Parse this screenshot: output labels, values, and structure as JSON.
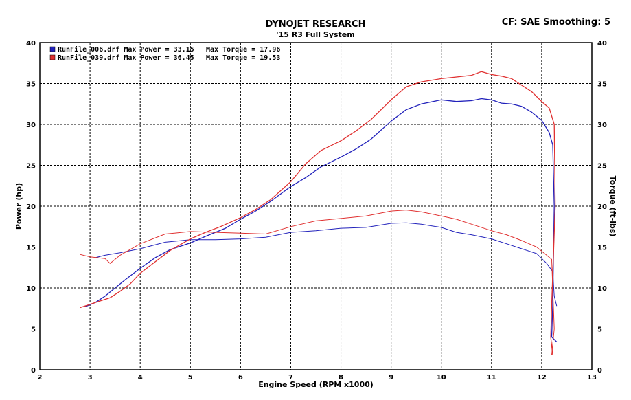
{
  "header": {
    "title": "DYNOJET RESEARCH",
    "subtitle": "'15 R3 Full System",
    "cf_label": "CF: SAE  Smoothing: 5"
  },
  "chart_data": {
    "type": "line",
    "xlabel": "Engine Speed (RPM x1000)",
    "ylabel_left": "Power (hp)",
    "ylabel_right": "Torque (ft-lbs)",
    "xlim": [
      2,
      13
    ],
    "ylim": [
      0,
      40
    ],
    "x_ticks": [
      2,
      3,
      4,
      5,
      6,
      7,
      8,
      9,
      10,
      11,
      12,
      13
    ],
    "y_ticks": [
      0,
      5,
      10,
      15,
      20,
      25,
      30,
      35,
      40
    ],
    "grid": true,
    "legend_position": "top-left",
    "legend": [
      {
        "label": "RunFile_006.drf Max Power = 33.15",
        "torque_label": "Max Torque = 17.96",
        "color": "#2222bb"
      },
      {
        "label": "RunFile_039.drf Max Power = 36.45",
        "torque_label": "Max Torque = 19.53",
        "color": "#e03030"
      }
    ],
    "series": [
      {
        "name": "RunFile_006.drf",
        "color": "#2222bb",
        "power": [
          [
            2.9,
            7.7
          ],
          [
            3.1,
            8.2
          ],
          [
            3.3,
            9.0
          ],
          [
            3.5,
            10.0
          ],
          [
            3.7,
            11.0
          ],
          [
            4.0,
            12.4
          ],
          [
            4.3,
            13.7
          ],
          [
            4.6,
            14.7
          ],
          [
            5.0,
            15.5
          ],
          [
            5.3,
            16.3
          ],
          [
            5.7,
            17.3
          ],
          [
            6.0,
            18.4
          ],
          [
            6.3,
            19.4
          ],
          [
            6.6,
            20.6
          ],
          [
            7.0,
            22.4
          ],
          [
            7.3,
            23.5
          ],
          [
            7.6,
            24.8
          ],
          [
            8.0,
            26.0
          ],
          [
            8.3,
            27.0
          ],
          [
            8.6,
            28.2
          ],
          [
            9.0,
            30.4
          ],
          [
            9.3,
            31.8
          ],
          [
            9.6,
            32.5
          ],
          [
            10.0,
            33.0
          ],
          [
            10.3,
            32.8
          ],
          [
            10.6,
            32.9
          ],
          [
            10.8,
            33.15
          ],
          [
            11.0,
            33.0
          ],
          [
            11.2,
            32.6
          ],
          [
            11.4,
            32.5
          ],
          [
            11.6,
            32.2
          ],
          [
            11.8,
            31.5
          ],
          [
            12.0,
            30.5
          ],
          [
            12.15,
            29.0
          ],
          [
            12.22,
            27.5
          ],
          [
            12.25,
            20.0
          ],
          [
            12.22,
            8.0
          ],
          [
            12.2,
            4.0
          ],
          [
            12.3,
            3.4
          ]
        ],
        "torque": [
          [
            3.1,
            13.7
          ],
          [
            3.3,
            14.0
          ],
          [
            3.6,
            14.3
          ],
          [
            4.0,
            14.8
          ],
          [
            4.5,
            15.6
          ],
          [
            5.0,
            15.9
          ],
          [
            5.5,
            15.9
          ],
          [
            6.0,
            16.0
          ],
          [
            6.5,
            16.2
          ],
          [
            7.0,
            16.8
          ],
          [
            7.5,
            17.0
          ],
          [
            8.0,
            17.3
          ],
          [
            8.5,
            17.4
          ],
          [
            9.0,
            17.9
          ],
          [
            9.3,
            17.96
          ],
          [
            9.6,
            17.8
          ],
          [
            10.0,
            17.4
          ],
          [
            10.3,
            16.8
          ],
          [
            10.6,
            16.5
          ],
          [
            11.0,
            16.0
          ],
          [
            11.3,
            15.4
          ],
          [
            11.6,
            14.8
          ],
          [
            11.9,
            14.2
          ],
          [
            12.1,
            13.0
          ],
          [
            12.22,
            12.0
          ],
          [
            12.25,
            9.0
          ],
          [
            12.3,
            7.8
          ]
        ]
      },
      {
        "name": "RunFile_039.drf",
        "color": "#e03030",
        "power": [
          [
            2.8,
            7.6
          ],
          [
            3.0,
            8.0
          ],
          [
            3.2,
            8.4
          ],
          [
            3.4,
            8.8
          ],
          [
            3.6,
            9.6
          ],
          [
            3.8,
            10.5
          ],
          [
            4.0,
            11.8
          ],
          [
            4.3,
            13.2
          ],
          [
            4.6,
            14.6
          ],
          [
            5.0,
            16.0
          ],
          [
            5.3,
            16.8
          ],
          [
            5.6,
            17.5
          ],
          [
            6.0,
            18.6
          ],
          [
            6.3,
            19.6
          ],
          [
            6.6,
            20.8
          ],
          [
            7.0,
            23.0
          ],
          [
            7.3,
            25.2
          ],
          [
            7.6,
            26.8
          ],
          [
            8.0,
            28.0
          ],
          [
            8.3,
            29.2
          ],
          [
            8.6,
            30.6
          ],
          [
            9.0,
            33.0
          ],
          [
            9.3,
            34.6
          ],
          [
            9.6,
            35.2
          ],
          [
            10.0,
            35.6
          ],
          [
            10.3,
            35.8
          ],
          [
            10.6,
            36.0
          ],
          [
            10.8,
            36.45
          ],
          [
            11.0,
            36.1
          ],
          [
            11.2,
            35.9
          ],
          [
            11.4,
            35.6
          ],
          [
            11.6,
            34.8
          ],
          [
            11.8,
            34.0
          ],
          [
            12.0,
            32.8
          ],
          [
            12.15,
            32.0
          ],
          [
            12.25,
            30.0
          ],
          [
            12.27,
            20.0
          ],
          [
            12.2,
            8.0
          ],
          [
            12.18,
            4.0
          ],
          [
            12.22,
            1.8
          ]
        ],
        "torque": [
          [
            2.8,
            14.1
          ],
          [
            3.0,
            13.8
          ],
          [
            3.3,
            13.6
          ],
          [
            3.4,
            13.0
          ],
          [
            3.6,
            14.0
          ],
          [
            4.0,
            15.4
          ],
          [
            4.5,
            16.6
          ],
          [
            5.0,
            16.9
          ],
          [
            5.5,
            16.8
          ],
          [
            6.0,
            16.7
          ],
          [
            6.5,
            16.6
          ],
          [
            7.0,
            17.5
          ],
          [
            7.5,
            18.2
          ],
          [
            8.0,
            18.5
          ],
          [
            8.5,
            18.8
          ],
          [
            9.0,
            19.4
          ],
          [
            9.3,
            19.53
          ],
          [
            9.6,
            19.3
          ],
          [
            10.0,
            18.8
          ],
          [
            10.3,
            18.4
          ],
          [
            10.6,
            17.8
          ],
          [
            11.0,
            17.0
          ],
          [
            11.3,
            16.5
          ],
          [
            11.6,
            15.8
          ],
          [
            11.9,
            15.0
          ],
          [
            12.1,
            14.0
          ],
          [
            12.2,
            13.5
          ],
          [
            12.25,
            5.0
          ],
          [
            12.2,
            1.8
          ]
        ]
      }
    ]
  }
}
